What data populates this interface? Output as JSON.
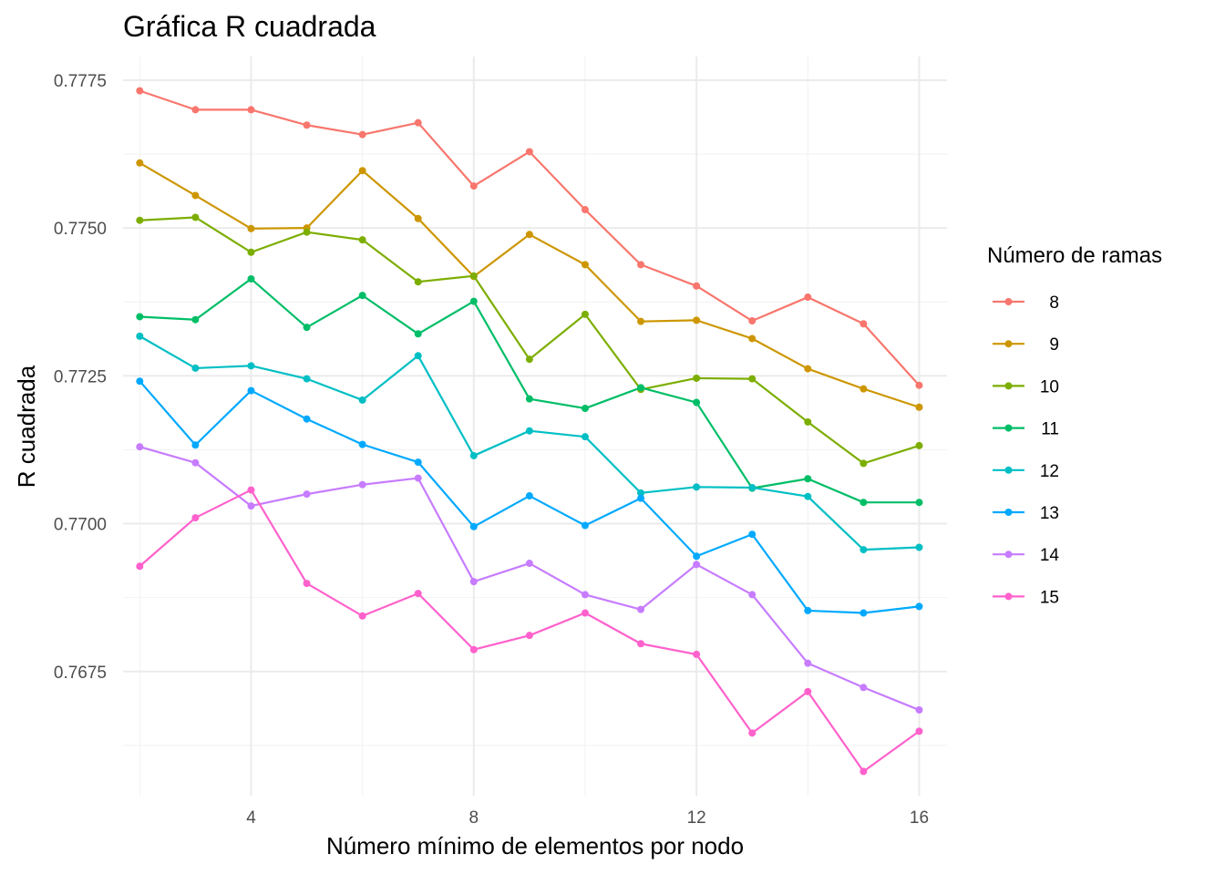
{
  "chart_data": {
    "type": "line",
    "title": "Gráfica R cuadrada",
    "xlabel": "Número mínimo de elementos por nodo",
    "ylabel": "R cuadrada",
    "xlim": [
      1.7,
      16.5
    ],
    "ylim": [
      0.7654,
      0.7779
    ],
    "x_ticks": [
      4,
      8,
      12,
      16
    ],
    "x_tick_labels": [
      "4",
      "8",
      "12",
      "16"
    ],
    "y_ticks": [
      0.7675,
      0.77,
      0.7725,
      0.775,
      0.7775
    ],
    "y_tick_labels": [
      "0.7675",
      "0.7700",
      "0.7725",
      "0.7750",
      "0.7775"
    ],
    "grid": true,
    "legend": {
      "title": "Número de ramas",
      "position": "right"
    },
    "x": [
      2,
      3,
      4,
      5,
      6,
      7,
      8,
      9,
      10,
      11,
      12,
      13,
      14,
      15,
      16
    ],
    "series": [
      {
        "name": "8",
        "color": "#F8766D",
        "values": [
          0.77732,
          0.777,
          0.777,
          0.77674,
          0.77658,
          0.77678,
          0.77571,
          0.77629,
          0.77531,
          0.77438,
          0.77402,
          0.77343,
          0.77383,
          0.77338,
          0.77234
        ]
      },
      {
        "name": "9",
        "color": "#CD9600",
        "values": [
          0.7761,
          0.77555,
          0.77499,
          0.775,
          0.77597,
          0.77516,
          0.77418,
          0.77489,
          0.77438,
          0.77342,
          0.77344,
          0.77313,
          0.77262,
          0.77228,
          0.77197
        ]
      },
      {
        "name": "10",
        "color": "#7CAE00",
        "values": [
          0.77513,
          0.77518,
          0.77459,
          0.77493,
          0.7748,
          0.77409,
          0.77419,
          0.77278,
          0.77354,
          0.77227,
          0.77246,
          0.77245,
          0.77172,
          0.77102,
          0.77132
        ]
      },
      {
        "name": "11",
        "color": "#00BE67",
        "values": [
          0.7735,
          0.77345,
          0.77414,
          0.77332,
          0.77386,
          0.77321,
          0.77376,
          0.77211,
          0.77195,
          0.7723,
          0.77205,
          0.7706,
          0.77076,
          0.77036,
          0.77036
        ]
      },
      {
        "name": "12",
        "color": "#00BFC4",
        "values": [
          0.77317,
          0.77263,
          0.77267,
          0.77245,
          0.77209,
          0.77284,
          0.77115,
          0.77157,
          0.77147,
          0.77052,
          0.77062,
          0.77061,
          0.77046,
          0.76956,
          0.7696
        ]
      },
      {
        "name": "13",
        "color": "#00A9FF",
        "values": [
          0.77241,
          0.77133,
          0.77225,
          0.77177,
          0.77134,
          0.77104,
          0.76995,
          0.77047,
          0.76997,
          0.77043,
          0.76945,
          0.76982,
          0.76853,
          0.76849,
          0.7686
        ]
      },
      {
        "name": "14",
        "color": "#C77CFF",
        "values": [
          0.7713,
          0.77103,
          0.7703,
          0.7705,
          0.77066,
          0.77077,
          0.76902,
          0.76933,
          0.7688,
          0.76855,
          0.76931,
          0.7688,
          0.76764,
          0.76723,
          0.76685
        ]
      },
      {
        "name": "15",
        "color": "#FF61CC",
        "values": [
          0.76928,
          0.7701,
          0.77057,
          0.76899,
          0.76844,
          0.76882,
          0.76787,
          0.76811,
          0.76849,
          0.76797,
          0.76779,
          0.76646,
          0.76716,
          0.76581,
          0.76649
        ]
      }
    ]
  }
}
